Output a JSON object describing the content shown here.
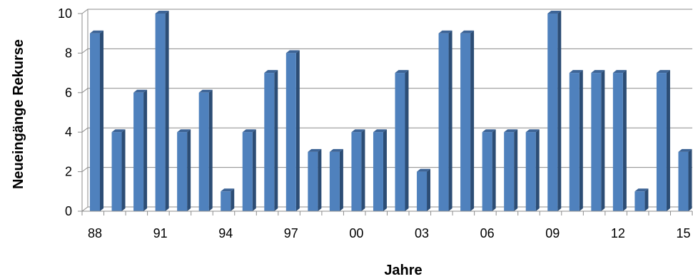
{
  "chart_data": {
    "type": "bar",
    "style": "3d-column",
    "xlabel": "Jahre",
    "ylabel": "Neueingänge Rekurse",
    "categories": [
      "88",
      "89",
      "90",
      "91",
      "92",
      "93",
      "94",
      "95",
      "96",
      "97",
      "98",
      "99",
      "00",
      "01",
      "02",
      "03",
      "04",
      "05",
      "06",
      "07",
      "08",
      "09",
      "10",
      "11",
      "12",
      "13",
      "14",
      "15"
    ],
    "values": [
      9,
      4,
      6,
      10,
      4,
      6,
      1,
      4,
      7,
      8,
      3,
      3,
      4,
      4,
      7,
      2,
      9,
      9,
      4,
      4,
      4,
      10,
      7,
      7,
      7,
      1,
      7,
      3
    ],
    "x_tick_labels": [
      "88",
      "91",
      "94",
      "97",
      "00",
      "03",
      "06",
      "09",
      "12",
      "15"
    ],
    "y_ticks": [
      "0",
      "2",
      "4",
      "6",
      "8",
      "10"
    ],
    "ylim": [
      0,
      10
    ],
    "grid": true,
    "legend": "none",
    "colors": {
      "bar_front": "#4f81bd",
      "bar_side": "#2c4d75",
      "bar_top": "#3d6496",
      "grid": "#8c8c8c"
    }
  }
}
